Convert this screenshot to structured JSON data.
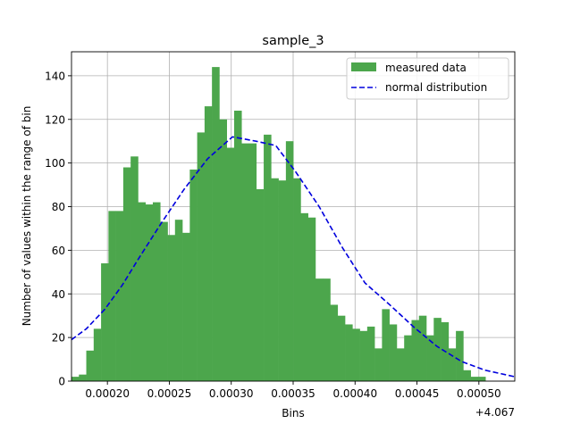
{
  "chart_data": {
    "type": "bar",
    "title": "sample_3",
    "xlabel": "Bins",
    "ylabel": "Number of values within the range of bin",
    "x_offset_label": "+4.067",
    "x_range": [
      0.000171,
      0.000529
    ],
    "ylim": [
      0,
      151
    ],
    "x_ticks": [
      0.0002,
      0.00025,
      0.0003,
      0.00035,
      0.0004,
      0.00045,
      0.0005
    ],
    "x_tick_labels": [
      "0.00020",
      "0.00025",
      "0.00030",
      "0.00035",
      "0.00040",
      "0.00045",
      "0.00050"
    ],
    "y_ticks": [
      0,
      20,
      40,
      60,
      80,
      100,
      120,
      140
    ],
    "y_tick_labels": [
      "0",
      "20",
      "40",
      "60",
      "80",
      "100",
      "120",
      "140"
    ],
    "grid": true,
    "legend_position": "top-right",
    "series": [
      {
        "name": "measured data",
        "kind": "histogram",
        "color": "#4ca64c",
        "bin_start": 0.000171,
        "bin_width": 5.97e-06,
        "values": [
          2,
          3,
          14,
          24,
          54,
          78,
          78,
          98,
          103,
          82,
          81,
          82,
          73,
          67,
          74,
          68,
          97,
          114,
          126,
          144,
          120,
          107,
          124,
          109,
          109,
          88,
          113,
          93,
          92,
          110,
          93,
          77,
          75,
          47,
          47,
          35,
          30,
          26,
          24,
          23,
          25,
          15,
          33,
          26,
          15,
          21,
          28,
          30,
          21,
          29,
          27,
          15,
          23,
          5,
          2,
          2
        ]
      },
      {
        "name": "normal distribution",
        "kind": "line",
        "color": "#0000dd",
        "style": "dashed",
        "x": [
          0.000171,
          0.000183,
          0.000198,
          0.000212,
          0.000225,
          0.000243,
          0.000262,
          0.000281,
          0.000301,
          0.00032,
          0.000336,
          0.000352,
          0.000371,
          0.00039,
          0.000408,
          0.000428,
          0.000447,
          0.000466,
          0.000486,
          0.000505,
          0.000529
        ],
        "y": [
          19,
          24,
          33,
          44,
          56,
          72,
          88,
          102,
          112,
          110,
          108,
          96,
          80,
          61,
          45,
          35,
          25,
          16,
          9,
          5,
          2
        ]
      }
    ]
  }
}
